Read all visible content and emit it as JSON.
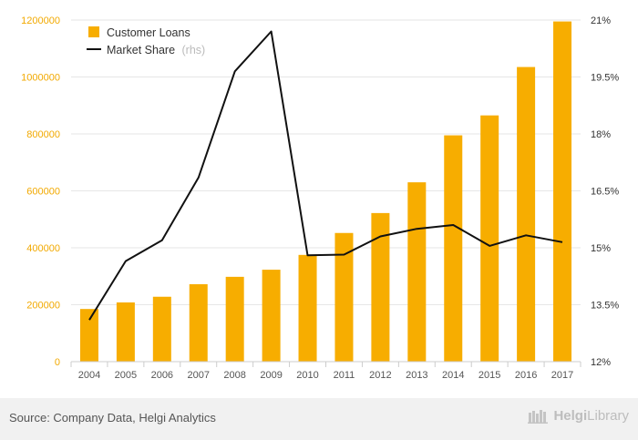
{
  "chart_data": {
    "type": "bar",
    "categories": [
      "2004",
      "2005",
      "2006",
      "2007",
      "2008",
      "2009",
      "2010",
      "2011",
      "2012",
      "2013",
      "2014",
      "2015",
      "2016",
      "2017"
    ],
    "series": [
      {
        "name": "Customer Loans",
        "type": "bar",
        "axis": "left",
        "color": "#f7ad00",
        "values": [
          185000,
          208000,
          228000,
          272000,
          298000,
          323000,
          375000,
          452000,
          522000,
          630000,
          795000,
          865000,
          1035000,
          1195000
        ]
      },
      {
        "name": "Market Share",
        "type": "line",
        "axis": "right",
        "color": "#111111",
        "values": [
          13.1,
          14.65,
          15.2,
          16.85,
          19.65,
          20.7,
          14.8,
          14.82,
          15.3,
          15.5,
          15.6,
          15.05,
          15.33,
          15.15
        ]
      }
    ],
    "legend": {
      "loans_label": "Customer Loans",
      "share_label": "Market Share",
      "share_suffix": "(rhs)",
      "position": "top-left"
    },
    "left_axis": {
      "ylim": [
        0,
        1200000
      ],
      "ticks": [
        "0",
        "200000",
        "400000",
        "600000",
        "800000",
        "1000000",
        "1200000"
      ]
    },
    "right_axis": {
      "ylim": [
        12,
        21
      ],
      "ticks": [
        "12%",
        "13.5%",
        "15%",
        "16.5%",
        "18%",
        "19.5%",
        "21%"
      ]
    },
    "grid": "horizontal"
  },
  "footer": {
    "source": "Source: Company Data, Helgi Analytics",
    "brand_prefix": "Helgi",
    "brand_suffix": "Library"
  },
  "colors": {
    "bar": "#f7ad00",
    "line": "#111111",
    "grid": "#e6e6e6",
    "left_tick": "#f2a900"
  }
}
